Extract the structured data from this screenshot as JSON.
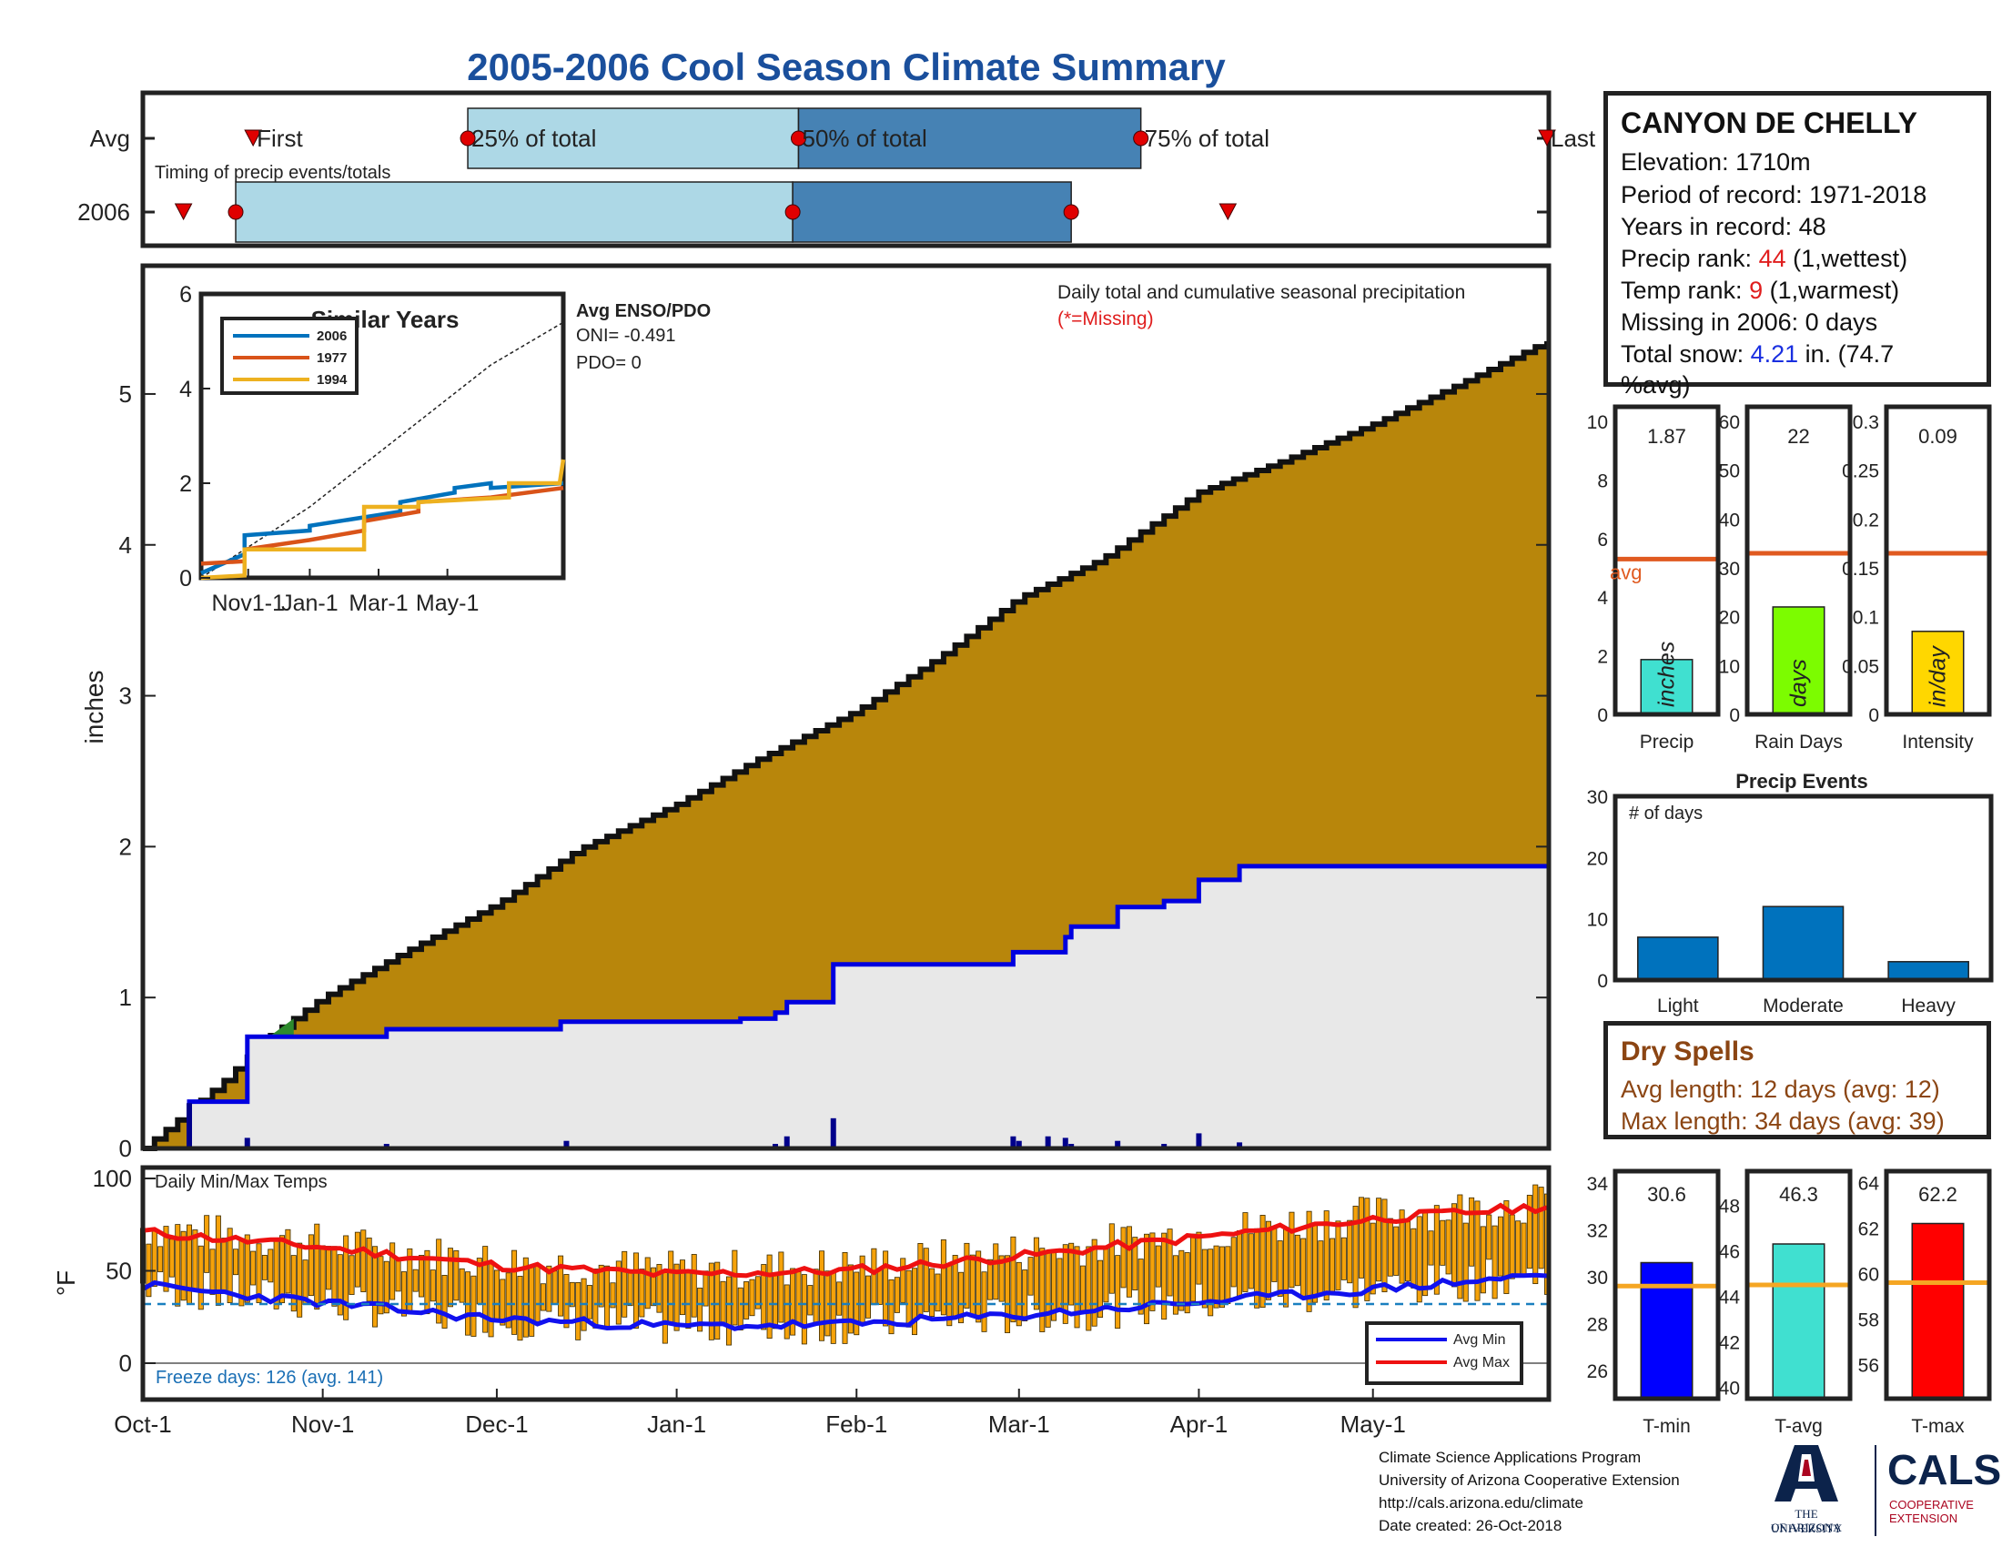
{
  "title": "2005-2006 Cool Season Climate Summary",
  "timing": {
    "annotation": "Timing of precip events/totals",
    "row_labels": [
      "Avg",
      "2006"
    ],
    "marker_labels": [
      "First",
      "25% of total",
      "50% of total",
      "75% of total",
      "Last"
    ],
    "avg": {
      "first": "Oct-20",
      "p25": "Nov-26",
      "p50": "Jan-22",
      "p75": "Mar-22",
      "last": "May-31"
    },
    "y2006": {
      "first": "Oct-8",
      "p25": "Oct-17",
      "p50": "Jan-21",
      "p75": "Mar-10",
      "last": "Apr-6"
    },
    "colors": {
      "first_half": "#add8e6",
      "second_half": "#4682b4",
      "marker": "#e00000"
    }
  },
  "station": {
    "name": "CANYON DE CHELLY",
    "elevation_label": "Elevation: 1710m",
    "period_label": "Period of record: 1971-2018",
    "years_label": "Years in record: 48",
    "precip_rank_prefix": "Precip rank: ",
    "precip_rank_value": "44",
    "precip_rank_suffix": " (1,wettest)",
    "temp_rank_prefix": "Temp rank: ",
    "temp_rank_value": "9",
    "temp_rank_suffix": " (1,warmest)",
    "missing_label": "Missing in 2006: 0 days",
    "snow_prefix": "Total snow: ",
    "snow_value": "4.21",
    "snow_suffix": " in. (74.7",
    "snow_suffix2": "%avg)"
  },
  "dry_spells": {
    "title": "Dry Spells",
    "avg_length": "Avg length: 12 days (avg: 12)",
    "max_length": "Max length: 34 days (avg: 39)"
  },
  "footer": {
    "line1": "Climate Science Applications Program",
    "line2": "University of Arizona Cooperative Extension",
    "line3": "http://cals.arizona.edu/climate",
    "line4": " Date created: 26-Oct-2018",
    "logo_ua_1": "THE UNIVERSITY",
    "logo_ua_2": "OF ARIZONA",
    "logo_cals": "CALS",
    "logo_coop_1": "COOPERATIVE",
    "logo_coop_2": "EXTENSION"
  },
  "chart_data": [
    {
      "id": "main_precip",
      "type": "area",
      "annotation": "Daily total and cumulative seasonal precipitation",
      "annotation_missing": "(*=Missing)",
      "ylabel": "inches",
      "ylim": [
        0,
        5.85
      ],
      "yticks": [
        0,
        1,
        2,
        3,
        4,
        5
      ],
      "xticks": [
        "Oct-1",
        "Nov-1",
        "Dec-1",
        "Jan-1",
        "Feb-1",
        "Mar-1",
        "Apr-1",
        "May-1"
      ],
      "avg_cumulative": {
        "dates": [
          "Oct-1",
          "Oct-8",
          "Oct-15",
          "Oct-22",
          "Nov-1",
          "Nov-15",
          "Dec-1",
          "Dec-15",
          "Jan-1",
          "Jan-15",
          "Feb-1",
          "Feb-15",
          "Mar-1",
          "Mar-15",
          "Apr-1",
          "Apr-15",
          "May-1",
          "May-15",
          "May-31"
        ],
        "values": [
          0,
          0.22,
          0.45,
          0.72,
          1.0,
          1.3,
          1.62,
          1.98,
          2.28,
          2.58,
          2.9,
          3.25,
          3.65,
          3.9,
          4.35,
          4.55,
          4.8,
          5.05,
          5.35
        ],
        "color": "#b8860b"
      },
      "year_cumulative": {
        "dates": [
          "Oct-1",
          "Oct-9",
          "Oct-18",
          "Oct-19",
          "Oct-27",
          "Nov-12",
          "Dec-12",
          "Jan-12",
          "Jan-18",
          "Jan-20",
          "Jan-28",
          "Feb-28",
          "Mar-9",
          "Mar-10",
          "Mar-18",
          "Mar-26",
          "Apr-1",
          "Apr-8",
          "May-31"
        ],
        "values": [
          0,
          0.31,
          0.31,
          0.74,
          0.74,
          0.79,
          0.84,
          0.86,
          0.9,
          0.97,
          1.22,
          1.3,
          1.4,
          1.47,
          1.6,
          1.64,
          1.78,
          1.87,
          1.87
        ],
        "color": "#0000e0",
        "fill": "#e8e8e8"
      },
      "daily_bars": {
        "dates": [
          "Oct-9",
          "Oct-19",
          "Nov-12",
          "Dec-13",
          "Jan-18",
          "Jan-20",
          "Jan-28",
          "Feb-28",
          "Mar-1",
          "Mar-6",
          "Mar-9",
          "Mar-10",
          "Mar-18",
          "Mar-26",
          "Apr-1",
          "Apr-8"
        ],
        "values": [
          0.3,
          0.07,
          0.03,
          0.05,
          0.03,
          0.08,
          0.2,
          0.08,
          0.05,
          0.08,
          0.07,
          0.03,
          0.05,
          0.03,
          0.1,
          0.04
        ],
        "color": "#00008b"
      }
    },
    {
      "id": "similar_years",
      "type": "line",
      "title": "Similar Years",
      "ylim": [
        0,
        6
      ],
      "yticks": [
        0,
        2,
        4,
        6
      ],
      "xticks": [
        "Nov1-1",
        "Jan-1",
        "Mar-1",
        "May-1"
      ],
      "enso_title": "Avg ENSO/PDO",
      "oni": "ONI= -0.491",
      "pdo": "PDO= 0",
      "series": [
        {
          "name": "2006",
          "color": "#0072bd",
          "x": [
            0,
            0.12,
            0.12,
            0.3,
            0.3,
            0.55,
            0.55,
            0.7,
            0.7,
            0.8,
            0.8,
            1.0
          ],
          "y": [
            0.1,
            0.5,
            0.9,
            1.0,
            1.1,
            1.4,
            1.6,
            1.8,
            1.9,
            2.0,
            1.9,
            2.0
          ]
        },
        {
          "name": "1977",
          "color": "#d95319",
          "x": [
            0,
            0.12,
            0.12,
            0.3,
            0.45,
            0.45,
            0.6,
            0.6,
            0.8,
            1.0
          ],
          "y": [
            0.3,
            0.35,
            0.6,
            0.8,
            1.0,
            1.2,
            1.4,
            1.6,
            1.7,
            1.9
          ]
        },
        {
          "name": "1994",
          "color": "#edb120",
          "x": [
            0,
            0.12,
            0.12,
            0.45,
            0.45,
            0.6,
            0.6,
            0.85,
            0.85,
            0.99,
            1.0
          ],
          "y": [
            0.0,
            0.05,
            0.6,
            0.6,
            1.5,
            1.5,
            1.6,
            1.7,
            2.0,
            2.0,
            2.5
          ]
        }
      ],
      "avg_line": {
        "x": [
          0,
          0.3,
          0.55,
          0.8,
          1.0
        ],
        "y": [
          0.0,
          1.5,
          3.0,
          4.5,
          5.4
        ]
      }
    },
    {
      "id": "temps",
      "type": "bar",
      "title": "Daily Min/Max Temps",
      "ylabel": "°F",
      "ylim": [
        0,
        100
      ],
      "yticks": [
        0,
        50,
        100
      ],
      "freeze_label": "Freeze days: 126 (avg. 141)",
      "freeze_line": 32,
      "legend": [
        "Avg Min",
        "Avg Max"
      ],
      "avg_max": {
        "month_start": [
          71,
          63,
          53,
          48,
          50,
          58,
          68,
          78,
          85
        ],
        "color": "#ee1111"
      },
      "avg_min": {
        "month_start": [
          42,
          33,
          24,
          20,
          21,
          26,
          33,
          40,
          48
        ],
        "color": "#1111ee"
      },
      "daily_bar_color": "#f5a20a"
    },
    {
      "id": "precip_summary",
      "type": "bar",
      "panels": [
        {
          "category": "Precip",
          "unit": "inches",
          "value": 1.87,
          "label": "1.87",
          "avg": 5.3,
          "avg_label": "avg",
          "ylim": [
            0,
            10.5
          ],
          "yticks": [
            0,
            2,
            4,
            6,
            8,
            10
          ],
          "color": "#40e0d0"
        },
        {
          "category": "Rain Days",
          "unit": "days",
          "value": 22,
          "label": "22",
          "avg": 33,
          "ylim": [
            0,
            63
          ],
          "yticks": [
            0,
            10,
            20,
            30,
            40,
            50,
            60
          ],
          "color": "#7cfc00"
        },
        {
          "category": "Intensity",
          "unit": "in/day",
          "value": 0.085,
          "label": "0.09",
          "avg": 0.165,
          "ylim": [
            0,
            0.315
          ],
          "yticks": [
            0,
            0.05,
            0.1,
            0.15,
            0.2,
            0.25,
            0.3
          ],
          "ytick_labels": [
            "0",
            "0.05",
            "0.1",
            "0.15",
            "0.2",
            "0.25",
            "0.3"
          ],
          "color": "#ffd700"
        }
      ],
      "avg_line_color": "#e05a20"
    },
    {
      "id": "precip_events",
      "type": "bar",
      "title": "Precip Events",
      "annotation": "# of days",
      "categories": [
        "Light",
        "Moderate",
        "Heavy"
      ],
      "values": [
        7,
        12,
        3
      ],
      "ylim": [
        0,
        30
      ],
      "yticks": [
        0,
        10,
        20,
        30
      ],
      "color": "#0072bd"
    },
    {
      "id": "temp_summary",
      "type": "bar",
      "panels": [
        {
          "category": "T-min",
          "value": 30.6,
          "label": "30.6",
          "avg": 29.6,
          "ylim": [
            24.8,
            34.5
          ],
          "yticks": [
            26,
            28,
            30,
            32,
            34
          ],
          "color": "#0000ff"
        },
        {
          "category": "T-avg",
          "value": 46.3,
          "label": "46.3",
          "avg": 44.5,
          "ylim": [
            39.5,
            49.5
          ],
          "yticks": [
            40,
            42,
            44,
            46,
            48
          ],
          "color": "#40e0d0"
        },
        {
          "category": "T-max",
          "value": 62.2,
          "label": "62.2",
          "avg": 59.6,
          "ylim": [
            54.5,
            64.5
          ],
          "yticks": [
            56,
            58,
            60,
            62,
            64
          ],
          "color": "#ff0000"
        }
      ],
      "avg_line_color": "#f5a623"
    }
  ]
}
